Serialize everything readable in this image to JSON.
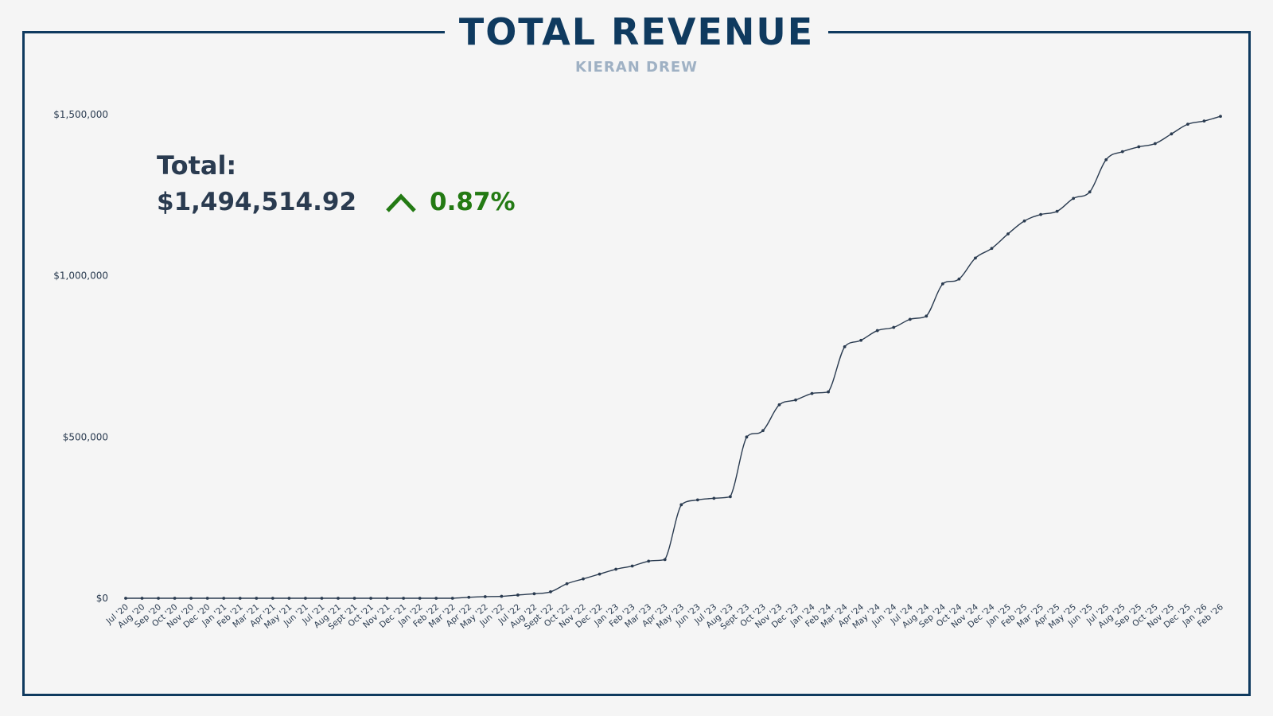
{
  "header": {
    "title": "TOTAL REVENUE",
    "subtitle": "KIERAN DREW"
  },
  "summary": {
    "label": "Total:",
    "amount": "$1,494,514.92",
    "change": "0.87%",
    "trend_icon": "chevron-up-icon",
    "trend_color": "#237a13"
  },
  "colors": {
    "frame": "#0f3a5f",
    "line": "#2a3b50",
    "background": "#f5f5f5"
  },
  "chart_data": {
    "type": "line",
    "title": "TOTAL REVENUE",
    "xlabel": "",
    "ylabel": "",
    "ylim": [
      0,
      1500000
    ],
    "y_ticks": [
      0,
      500000,
      1000000,
      1500000
    ],
    "y_tick_labels": [
      "$0",
      "$500,000",
      "$1,000,000",
      "$1,500,000"
    ],
    "grid": false,
    "categories": [
      "Jul '20",
      "Aug '20",
      "Sep '20",
      "Oct '20",
      "Nov '20",
      "Dec '20",
      "Jan '21",
      "Feb '21",
      "Mar '21",
      "Apr '21",
      "May '21",
      "Jun '21",
      "Jul '21",
      "Aug '21",
      "Sept '21",
      "Oct '21",
      "Nov '21",
      "Dec '21",
      "Jan '22",
      "Feb '22",
      "Mar '22",
      "Apr '22",
      "May '22",
      "Jun '22",
      "Jul '22",
      "Aug '22",
      "Sept '22",
      "Oct '22",
      "Nov '22",
      "Dec '22",
      "Jan '23",
      "Feb '23",
      "Mar '23",
      "Apr '23",
      "May '23",
      "Jun '23",
      "Jul '23",
      "Aug '23",
      "Sept '23",
      "Oct '23",
      "Nov '23",
      "Dec '23",
      "Jan '24",
      "Feb '24",
      "Mar '24",
      "Apr '24",
      "May '24",
      "Jun '24",
      "Jul '24",
      "Aug '24",
      "Sep '24",
      "Oct '24",
      "Nov '24",
      "Dec '24",
      "Jan '25",
      "Feb '25",
      "Mar '25",
      "Apr '25",
      "May '25",
      "Jun '25",
      "Jul '25",
      "Aug '25",
      "Sep '25",
      "Oct '25",
      "Nov '25",
      "Dec '25",
      "Jan '26",
      "Feb '26"
    ],
    "values": [
      0,
      0,
      0,
      0,
      0,
      0,
      0,
      0,
      0,
      0,
      0,
      0,
      0,
      0,
      0,
      0,
      0,
      0,
      0,
      0,
      0,
      3000,
      5000,
      6000,
      10000,
      14000,
      20000,
      45000,
      60000,
      75000,
      90000,
      100000,
      115000,
      120000,
      290000,
      305000,
      310000,
      315000,
      500000,
      520000,
      600000,
      615000,
      635000,
      640000,
      780000,
      800000,
      830000,
      840000,
      865000,
      875000,
      975000,
      990000,
      1055000,
      1085000,
      1130000,
      1170000,
      1190000,
      1200000,
      1240000,
      1260000,
      1360000,
      1385000,
      1400000,
      1410000,
      1440000,
      1470000,
      1480000,
      1494515
    ]
  }
}
